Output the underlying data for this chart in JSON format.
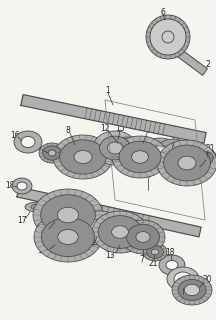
{
  "bg_color": "#f5f5f0",
  "line_color": "#444444",
  "gear_face": "#b8b8b8",
  "gear_mid": "#999999",
  "gear_dark": "#777777",
  "gear_hub": "#cccccc",
  "shaft_face": "#aaaaaa",
  "shaft_color": "#555555",
  "label_color": "#222222",
  "label_fs": 5.5,
  "leader_color": "#333333",
  "leader_lw": 0.5,
  "gear_lw": 0.55
}
